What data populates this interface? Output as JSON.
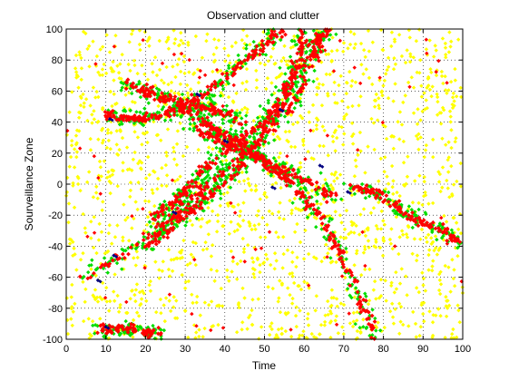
{
  "chart_data": {
    "type": "scatter",
    "title": "Observation and clutter",
    "xlabel": "Time",
    "ylabel": "Sourveillance Zone",
    "xlim": [
      0,
      100
    ],
    "ylim": [
      -100,
      100
    ],
    "x_ticks": [
      "0",
      "10",
      "20",
      "30",
      "40",
      "50",
      "60",
      "70",
      "80",
      "90",
      "100"
    ],
    "y_ticks": [
      "100",
      "80",
      "60",
      "40",
      "20",
      "0",
      "-20",
      "-40",
      "-60",
      "-80",
      "-100"
    ],
    "grid": "dotted",
    "marker_colors": {
      "clutter": "#ffff00",
      "observation_band": "#00dd00",
      "observation_core": "#ff0000",
      "estimate": "#000080"
    },
    "tracks": [
      {
        "points": [
          [
            5,
            -60
          ],
          [
            15,
            -45
          ],
          [
            25,
            -25
          ],
          [
            30,
            -15
          ],
          [
            38,
            5
          ],
          [
            45,
            20
          ],
          [
            52,
            35
          ],
          [
            58,
            55
          ],
          [
            62,
            80
          ],
          [
            66,
            100
          ]
        ]
      },
      {
        "points": [
          [
            22,
            -20
          ],
          [
            28,
            -10
          ],
          [
            30,
            -5
          ],
          [
            35,
            10
          ],
          [
            42,
            25
          ],
          [
            50,
            40
          ],
          [
            55,
            60
          ],
          [
            60,
            80
          ],
          [
            65,
            100
          ]
        ]
      },
      {
        "points": [
          [
            20,
            -40
          ],
          [
            25,
            -30
          ],
          [
            30,
            -20
          ],
          [
            35,
            -10
          ],
          [
            40,
            0
          ],
          [
            45,
            15
          ],
          [
            50,
            35
          ],
          [
            55,
            55
          ],
          [
            58,
            75
          ],
          [
            60,
            100
          ]
        ]
      },
      {
        "points": [
          [
            15,
            65
          ],
          [
            20,
            60
          ],
          [
            25,
            55
          ],
          [
            30,
            52
          ],
          [
            35,
            50
          ],
          [
            40,
            45
          ],
          [
            45,
            40
          ]
        ]
      },
      {
        "points": [
          [
            10,
            45
          ],
          [
            15,
            43
          ],
          [
            20,
            42
          ],
          [
            25,
            45
          ],
          [
            30,
            50
          ],
          [
            35,
            58
          ],
          [
            40,
            68
          ],
          [
            45,
            80
          ],
          [
            50,
            90
          ],
          [
            55,
            100
          ]
        ]
      },
      {
        "points": [
          [
            28,
            50
          ],
          [
            32,
            45
          ],
          [
            36,
            38
          ],
          [
            40,
            32
          ],
          [
            45,
            25
          ],
          [
            50,
            15
          ],
          [
            55,
            5
          ],
          [
            60,
            -8
          ],
          [
            65,
            -25
          ],
          [
            68,
            -40
          ],
          [
            72,
            -60
          ],
          [
            75,
            -80
          ],
          [
            78,
            -100
          ]
        ]
      },
      {
        "points": [
          [
            32,
            35
          ],
          [
            38,
            30
          ],
          [
            44,
            22
          ],
          [
            50,
            15
          ],
          [
            56,
            8
          ],
          [
            62,
            0
          ],
          [
            68,
            -10
          ]
        ]
      },
      {
        "points": [
          [
            72,
            -2
          ],
          [
            78,
            -5
          ],
          [
            82,
            -12
          ],
          [
            86,
            -20
          ],
          [
            90,
            -25
          ],
          [
            95,
            -30
          ],
          [
            100,
            -40
          ]
        ]
      },
      {
        "points": [
          [
            8,
            -92
          ],
          [
            12,
            -94
          ],
          [
            16,
            -93
          ],
          [
            20,
            -95
          ],
          [
            24,
            -96
          ]
        ]
      }
    ],
    "clutter_density": 1600,
    "estimates": [
      [
        11,
        42
      ],
      [
        12,
        -46
      ],
      [
        27,
        -18
      ],
      [
        52,
        -2
      ],
      [
        54,
        48
      ],
      [
        64,
        12
      ],
      [
        71,
        -5
      ],
      [
        10,
        -92
      ],
      [
        8,
        -62
      ],
      [
        40,
        28
      ],
      [
        33,
        58
      ]
    ],
    "observation_count": 1400,
    "stray_red_count": 80
  }
}
